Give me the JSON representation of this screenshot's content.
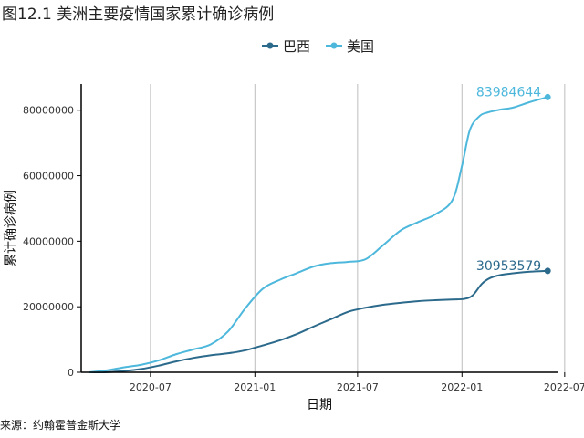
{
  "chart_data": {
    "type": "line",
    "title": "图12.1 美洲主要疫情国家累计确诊病例",
    "xlabel": "日期",
    "ylabel": "累计确诊病例",
    "source": "来源：约翰霍普金斯大学",
    "x_ticks": [
      "2020-07",
      "2021-01",
      "2021-07",
      "2022-01",
      "2022-07"
    ],
    "y_ticks": [
      "0",
      "20000000",
      "40000000",
      "60000000",
      "80000000"
    ],
    "ylim": [
      0,
      88000000
    ],
    "xlim": [
      "2020-03-01",
      "2022-06-20"
    ],
    "grid": "vertical-major",
    "legend_position": "top",
    "series": [
      {
        "name": "巴西",
        "color": "#2c6a8c",
        "end_label": "30953579",
        "x": [
          "2020-03-15",
          "2020-04-15",
          "2020-05-15",
          "2020-06-15",
          "2020-07-15",
          "2020-08-15",
          "2020-09-15",
          "2020-10-15",
          "2020-11-15",
          "2020-12-15",
          "2021-01-15",
          "2021-02-15",
          "2021-03-15",
          "2021-04-15",
          "2021-05-15",
          "2021-06-15",
          "2021-07-15",
          "2021-08-15",
          "2021-09-15",
          "2021-10-15",
          "2021-11-15",
          "2021-12-15",
          "2022-01-05",
          "2022-01-20",
          "2022-02-05",
          "2022-02-20",
          "2022-03-10",
          "2022-04-01",
          "2022-05-01",
          "2022-06-01"
        ],
        "values": [
          0,
          50000,
          400000,
          1000000,
          2000000,
          3300000,
          4400000,
          5200000,
          5800000,
          6700000,
          8200000,
          9800000,
          11600000,
          14000000,
          16200000,
          18500000,
          19700000,
          20600000,
          21200000,
          21700000,
          22000000,
          22200000,
          22400000,
          23500000,
          27000000,
          28800000,
          29700000,
          30200000,
          30700000,
          30953579
        ]
      },
      {
        "name": "美国",
        "color": "#4db8dc",
        "end_label": "83984644",
        "x": [
          "2020-03-15",
          "2020-04-15",
          "2020-05-15",
          "2020-06-15",
          "2020-07-15",
          "2020-08-15",
          "2020-09-15",
          "2020-10-15",
          "2020-11-15",
          "2020-12-15",
          "2021-01-15",
          "2021-02-15",
          "2021-03-15",
          "2021-04-15",
          "2021-05-15",
          "2021-06-15",
          "2021-07-15",
          "2021-08-15",
          "2021-09-15",
          "2021-10-15",
          "2021-11-15",
          "2021-12-15",
          "2022-01-01",
          "2022-01-15",
          "2022-02-01",
          "2022-02-15",
          "2022-03-10",
          "2022-04-01",
          "2022-05-01",
          "2022-06-01"
        ],
        "values": [
          0,
          600000,
          1500000,
          2300000,
          3600000,
          5500000,
          7000000,
          8500000,
          12500000,
          19500000,
          25500000,
          28300000,
          30200000,
          32300000,
          33300000,
          33700000,
          34500000,
          38800000,
          43300000,
          45800000,
          48200000,
          52500000,
          63000000,
          74000000,
          78200000,
          79300000,
          80200000,
          80800000,
          82500000,
          83984644
        ]
      }
    ]
  }
}
